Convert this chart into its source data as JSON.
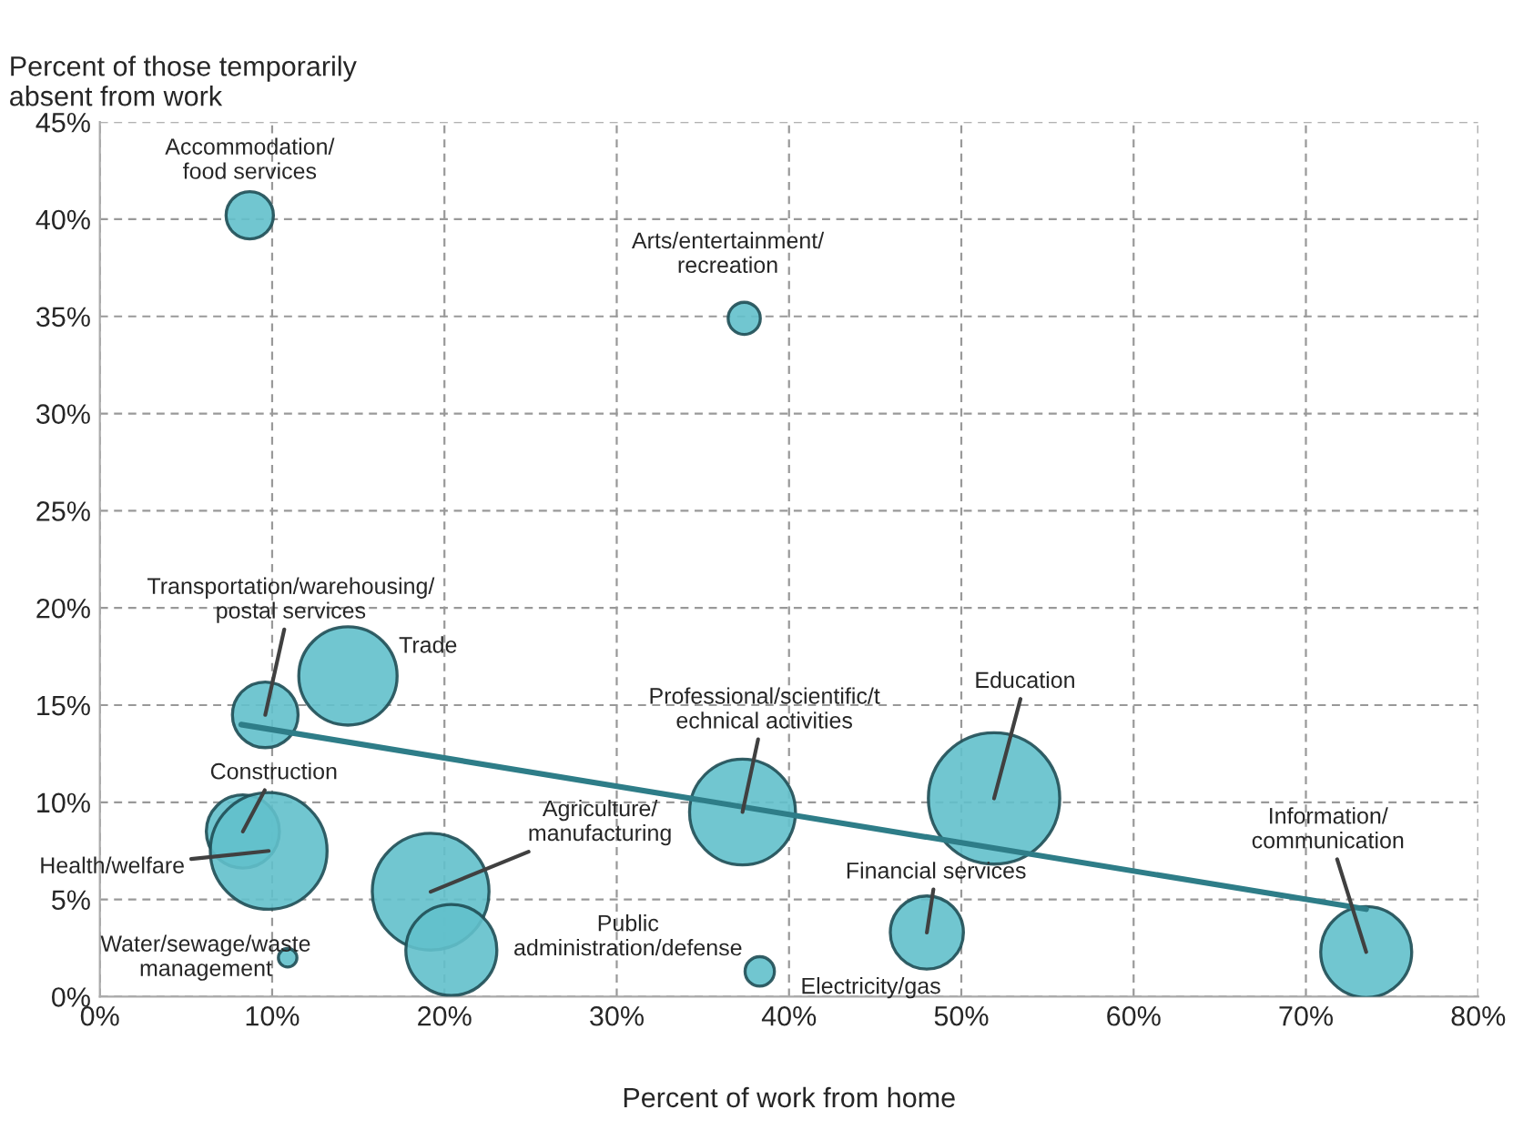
{
  "chart_data": {
    "type": "bubble",
    "xlabel": "Percent of work from home",
    "ylabel": "Percent of those temporarily\nabsent from work",
    "series": [
      {
        "color": "#62c0cb",
        "x": [
          8.7,
          37.4,
          9.6,
          14.4,
          8.3,
          9.8,
          19.2,
          20.4,
          37.3,
          51.9,
          48.0,
          38.3,
          73.5,
          10.9
        ],
        "values": [
          40.2,
          34.9,
          14.5,
          16.5,
          8.5,
          7.5,
          5.4,
          2.4,
          9.5,
          10.2,
          3.3,
          1.3,
          2.3,
          2.0
        ],
        "sizes": [
          0.13,
          0.06,
          0.25,
          0.56,
          0.31,
          0.79,
          0.79,
          0.48,
          0.65,
          1,
          0.31,
          0.05,
          0.48,
          0.02
        ]
      },
      {
        "type": "line",
        "color": "#2e7d88",
        "x": [
          8.2,
          73.5
        ],
        "values": [
          14.0,
          4.5
        ]
      }
    ],
    "annotations": [
      {
        "text": "Accommodation/\nfood services",
        "x": 8.7,
        "y": 40.2
      },
      {
        "text": "Arts/entertainment/\nrecreation",
        "x": 37.4,
        "y": 34.9
      },
      {
        "text": "Transportation/warehousing/\npostal services",
        "x": 9.6,
        "y": 14.5
      },
      {
        "text": "Trade",
        "x": 14.4,
        "y": 16.5
      },
      {
        "text": "Construction",
        "x": 8.3,
        "y": 8.5
      },
      {
        "text": "Health/welfare",
        "x": 9.8,
        "y": 7.5
      },
      {
        "text": "Agriculture/\nmanufacturing",
        "x": 19.2,
        "y": 5.4
      },
      {
        "text": "Public\nadministration/defense",
        "x": 20.4,
        "y": 2.4
      },
      {
        "text": "Professional/scientific/t\nechnical activities",
        "x": 37.3,
        "y": 9.5
      },
      {
        "text": "Education",
        "x": 51.9,
        "y": 10.2
      },
      {
        "text": "Financial services",
        "x": 48.0,
        "y": 3.3
      },
      {
        "text": "Electricity/gas",
        "x": 38.3,
        "y": 1.3
      },
      {
        "text": "Information/\ncommunication",
        "x": 73.5,
        "y": 2.3
      },
      {
        "text": "Water/sewage/waste\nmanagement",
        "x": 10.9,
        "y": 2.0
      }
    ],
    "xlim": [
      0,
      80
    ],
    "xticks": [
      {
        "value": 0,
        "label": "0%"
      },
      {
        "value": 10,
        "label": "10%"
      },
      {
        "value": 20,
        "label": "20%"
      },
      {
        "value": 30,
        "label": "30%"
      },
      {
        "value": 40,
        "label": "40%"
      },
      {
        "value": 50,
        "label": "50%"
      },
      {
        "value": 60,
        "label": "60%"
      },
      {
        "value": 70,
        "label": "70%"
      },
      {
        "value": 80,
        "label": "80%"
      }
    ],
    "ylim": [
      0,
      45
    ],
    "yticks": [
      {
        "value": 0,
        "label": "0%"
      },
      {
        "value": 5,
        "label": "5%"
      },
      {
        "value": 10,
        "label": "10%"
      },
      {
        "value": 15,
        "label": "15%"
      },
      {
        "value": 20,
        "label": "20%"
      },
      {
        "value": 25,
        "label": "25%"
      },
      {
        "value": 30,
        "label": "30%"
      },
      {
        "value": 35,
        "label": "35%"
      },
      {
        "value": 40,
        "label": "40%"
      },
      {
        "value": 45,
        "label": "45%"
      }
    ],
    "grid": true
  }
}
